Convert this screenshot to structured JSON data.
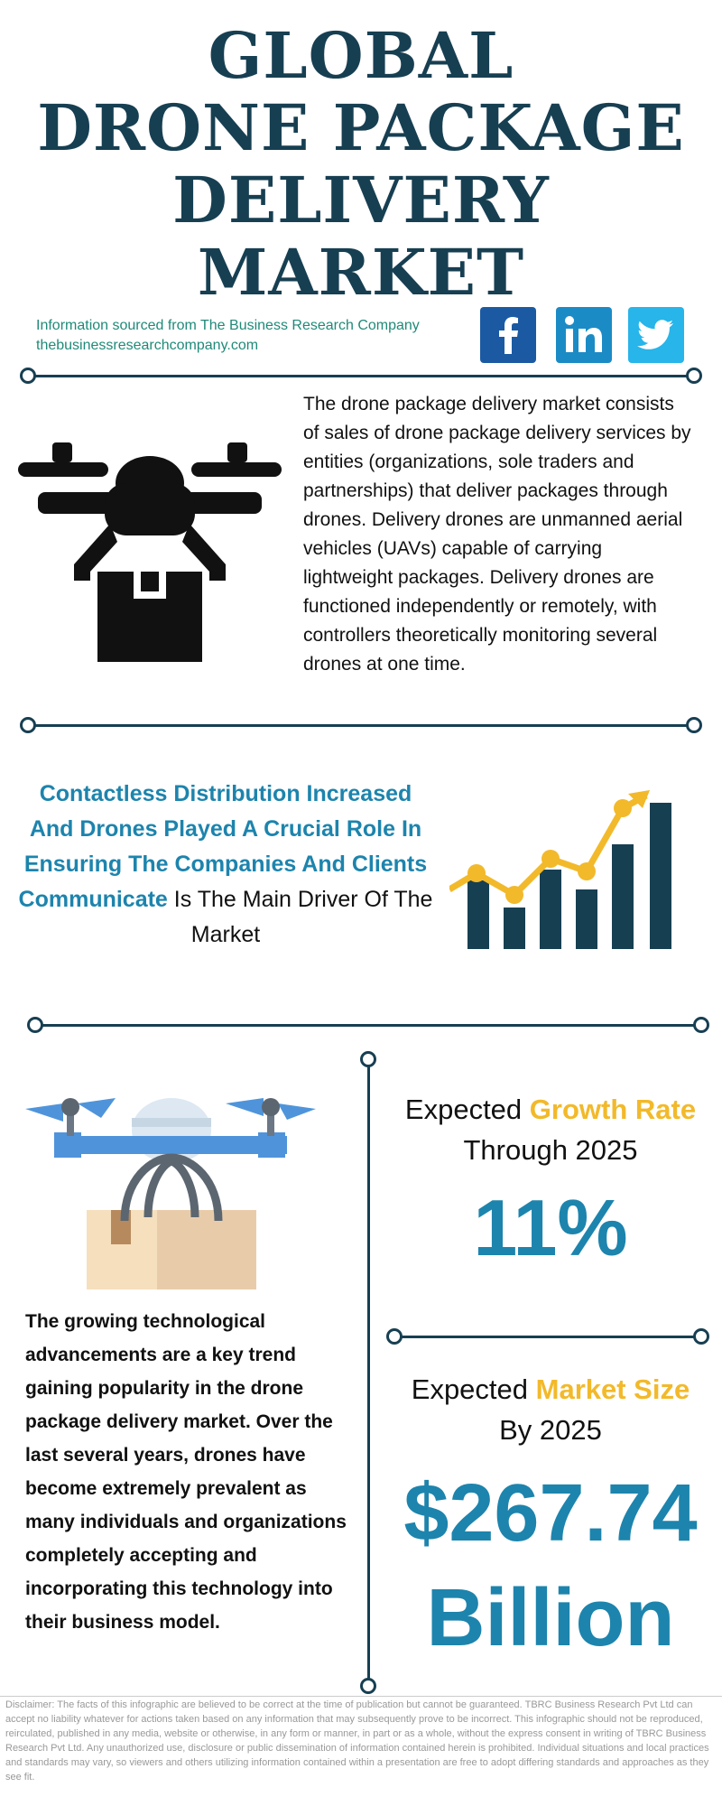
{
  "title": {
    "line1": "GLOBAL",
    "line2": "DRONE PACKAGE",
    "line3": "DELIVERY",
    "line4": "MARKET"
  },
  "source": {
    "line1": "Information sourced from The Business Research Company",
    "line2": "thebusinessresearchcompany.com"
  },
  "social": [
    "facebook-icon",
    "linkedin-icon",
    "twitter-icon"
  ],
  "description": "The drone package delivery market consists of sales of drone package delivery services by entities (organizations, sole traders and partnerships) that deliver packages through drones. Delivery drones are unmanned aerial vehicles (UAVs) capable of carrying lightweight packages. Delivery drones are functioned independently or remotely, with controllers theoretically monitoring several drones at one time.",
  "driver": {
    "highlight": "Contactless Distribution Increased And Drones Played A Crucial Role In Ensuring The Companies And Clients Communicate",
    "rest": " Is The Main Driver Of The Market"
  },
  "trend_text": "The growing technological advancements are a key trend gaining popularity in the drone package delivery market. Over the last several years, drones have become extremely prevalent as many individuals and organizations completely accepting and incorporating this technology into their business model.",
  "growth": {
    "prefix": "Expected ",
    "accent": "Growth Rate",
    "suffix": "Through 2025",
    "value": "11%"
  },
  "market_size": {
    "prefix": "Expected ",
    "accent": "Market Size",
    "suffix": "By 2025",
    "value_line1": "$267.74",
    "value_line2": "Billion"
  },
  "disclaimer": "Disclaimer: The facts of this infographic are believed to be correct at the time of publication but cannot be guaranteed. TBRC Business Research Pvt Ltd can accept no liability whatever for actions taken based on any information that may subsequently prove to be incorrect. This infographic should not be reproduced, reirculated, published in any media, website or otherwise, in any form or manner, in part or as a whole, without the express consent in writing of TBRC Business Research Pvt Ltd. Any unauthorized use, disclosure or public dissemination of information contained herein is prohibited. Individual situations and local practices and standards may vary, so viewers and others utilizing information contained within a presentation are free to adopt differing standards and approaches as they see fit.",
  "colors": {
    "navy": "#173f52",
    "blue": "#1d84ad",
    "gold": "#f2b92a",
    "teal": "#1f8a78"
  }
}
